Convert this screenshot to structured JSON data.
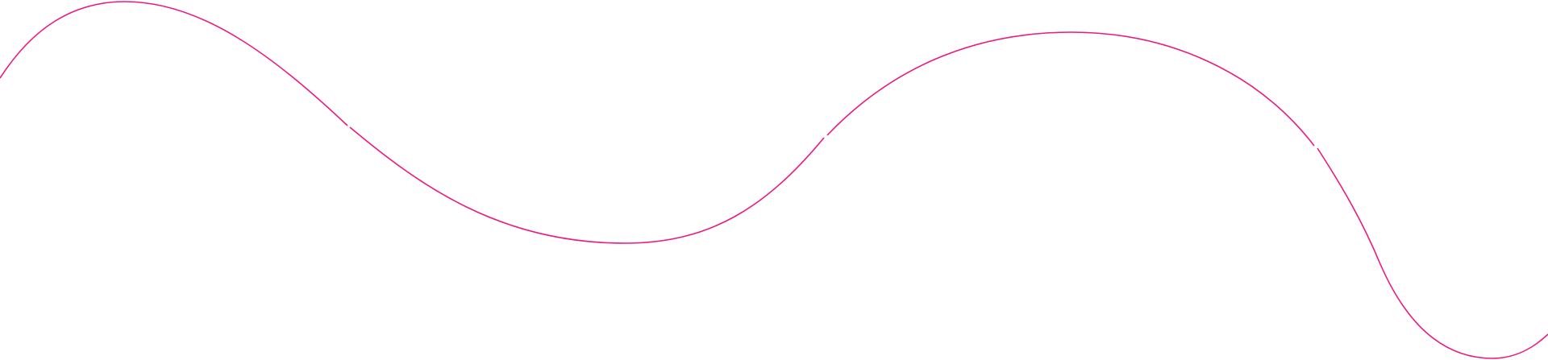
{
  "decoration": {
    "line_color": "#ea1a7f",
    "background_color": "#ffffff",
    "segments": 4
  }
}
